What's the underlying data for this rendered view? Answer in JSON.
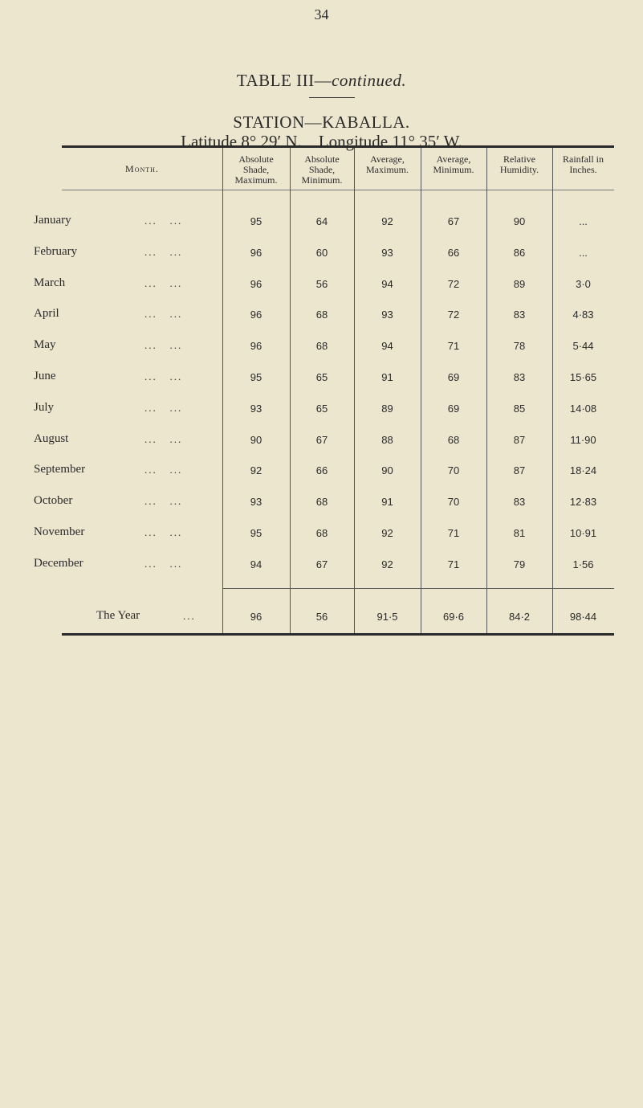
{
  "page_number": "34",
  "title": {
    "main": "TABLE III—",
    "italic": "continued."
  },
  "station": "STATION—KABALLA.",
  "coordinates": "Latitude 8° 29′ N.    Longitude 11° 35′ W.",
  "columns": [
    "Month.",
    "Absolute Shade, Maximum.",
    "Absolute Shade, Minimum.",
    "Average, Maximum.",
    "Average, Minimum.",
    "Relative Humidity.",
    "Rainfall in Inches."
  ],
  "rows": [
    {
      "month": "January",
      "abs_max": "95",
      "abs_min": "64",
      "avg_max": "92",
      "avg_min": "67",
      "humidity": "90",
      "rainfall": "..."
    },
    {
      "month": "February",
      "abs_max": "96",
      "abs_min": "60",
      "avg_max": "93",
      "avg_min": "66",
      "humidity": "86",
      "rainfall": "..."
    },
    {
      "month": "March",
      "abs_max": "96",
      "abs_min": "56",
      "avg_max": "94",
      "avg_min": "72",
      "humidity": "89",
      "rainfall": "3·0"
    },
    {
      "month": "April",
      "abs_max": "96",
      "abs_min": "68",
      "avg_max": "93",
      "avg_min": "72",
      "humidity": "83",
      "rainfall": "4·83"
    },
    {
      "month": "May",
      "abs_max": "96",
      "abs_min": "68",
      "avg_max": "94",
      "avg_min": "71",
      "humidity": "78",
      "rainfall": "5·44"
    },
    {
      "month": "June",
      "abs_max": "95",
      "abs_min": "65",
      "avg_max": "91",
      "avg_min": "69",
      "humidity": "83",
      "rainfall": "15·65"
    },
    {
      "month": "July",
      "abs_max": "93",
      "abs_min": "65",
      "avg_max": "89",
      "avg_min": "69",
      "humidity": "85",
      "rainfall": "14·08"
    },
    {
      "month": "August",
      "abs_max": "90",
      "abs_min": "67",
      "avg_max": "88",
      "avg_min": "68",
      "humidity": "87",
      "rainfall": "11·90"
    },
    {
      "month": "September",
      "abs_max": "92",
      "abs_min": "66",
      "avg_max": "90",
      "avg_min": "70",
      "humidity": "87",
      "rainfall": "18·24"
    },
    {
      "month": "October",
      "abs_max": "93",
      "abs_min": "68",
      "avg_max": "91",
      "avg_min": "70",
      "humidity": "83",
      "rainfall": "12·83"
    },
    {
      "month": "November",
      "abs_max": "95",
      "abs_min": "68",
      "avg_max": "92",
      "avg_min": "71",
      "humidity": "81",
      "rainfall": "10·91"
    },
    {
      "month": "December",
      "abs_max": "94",
      "abs_min": "67",
      "avg_max": "92",
      "avg_min": "71",
      "humidity": "79",
      "rainfall": "1·56"
    }
  ],
  "year_row": {
    "month": "The Year",
    "abs_max": "96",
    "abs_min": "56",
    "avg_max": "91·5",
    "avg_min": "69·6",
    "humidity": "84·2",
    "rainfall": "98·44"
  },
  "leader_dots": "...   ..."
}
